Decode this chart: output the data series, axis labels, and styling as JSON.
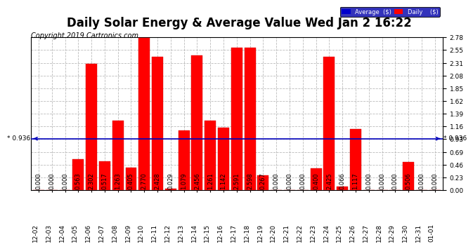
{
  "title": "Daily Solar Energy & Average Value Wed Jan 2 16:22",
  "copyright": "Copyright 2019 Cartronics.com",
  "categories": [
    "12-02",
    "12-03",
    "12-04",
    "12-05",
    "12-06",
    "12-07",
    "12-08",
    "12-09",
    "12-10",
    "12-11",
    "12-12",
    "12-13",
    "12-14",
    "12-15",
    "12-16",
    "12-17",
    "12-18",
    "12-19",
    "12-20",
    "12-21",
    "12-22",
    "12-23",
    "12-24",
    "12-25",
    "12-26",
    "12-27",
    "12-28",
    "12-29",
    "12-30",
    "12-31",
    "01-01"
  ],
  "values": [
    0.0,
    0.0,
    0.0,
    0.563,
    2.302,
    0.517,
    1.263,
    0.405,
    2.77,
    2.428,
    0.029,
    1.079,
    2.456,
    1.261,
    1.142,
    2.591,
    2.598,
    0.267,
    0.0,
    0.0,
    0.0,
    0.4,
    2.425,
    0.066,
    1.117,
    0.0,
    0.0,
    0.0,
    0.506,
    0.0,
    0.0
  ],
  "average_line": 0.936,
  "bar_color": "#ff0000",
  "bar_edge_color": "#cc0000",
  "avg_line_color": "#0000bb",
  "background_color": "#ffffff",
  "grid_color": "#aaaaaa",
  "ylim_max": 2.78,
  "yticks": [
    0.0,
    0.23,
    0.46,
    0.69,
    0.93,
    1.16,
    1.39,
    1.62,
    1.85,
    2.08,
    2.31,
    2.55,
    2.78
  ],
  "title_fontsize": 12,
  "copyright_fontsize": 7,
  "tick_fontsize": 6.5,
  "val_label_fontsize": 6.0,
  "avg_label_fontsize": 6.5,
  "legend_bg_color": "#0000aa",
  "legend_avg_color": "#0000cc",
  "legend_daily_color": "#ff0000",
  "legend_text_color": "#ffffff",
  "avg_label_left": "* 0.936",
  "avg_label_right": "* 0.936"
}
